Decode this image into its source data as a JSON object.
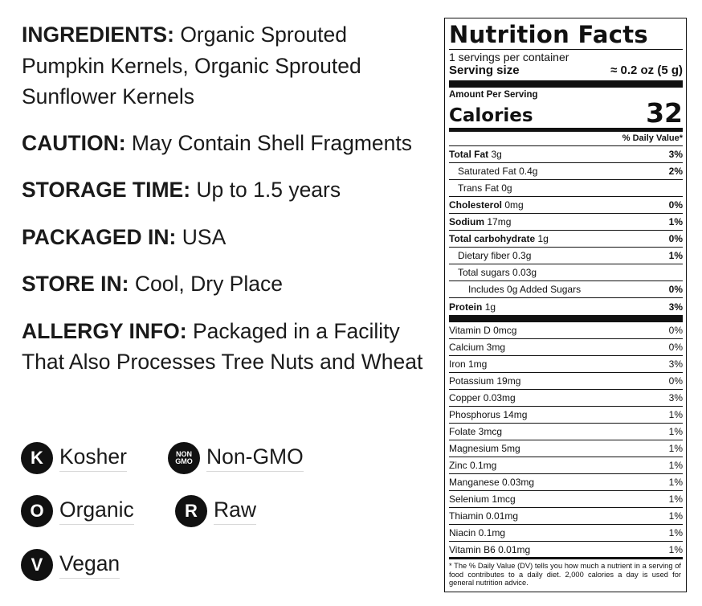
{
  "info": {
    "ingredients_label": "INGREDIENTS:",
    "ingredients_text": "Organic Sprouted Pumpkin Kernels, Organic Sprouted Sunflower Kernels",
    "caution_label": "CAUTION:",
    "caution_text": "May Contain Shell Fragments",
    "storage_time_label": "STORAGE TIME:",
    "storage_time_text": "Up to 1.5 years",
    "packaged_label": "PACKAGED IN:",
    "packaged_text": "USA",
    "store_label": "STORE IN:",
    "store_text": "Cool, Dry Place",
    "allergy_label": "ALLERGY INFO:",
    "allergy_text": "Packaged in a Facility That Also Processes Tree Nuts and Wheat"
  },
  "badges": {
    "kosher": {
      "icon_letter": "K",
      "label": "Kosher"
    },
    "nongmo": {
      "icon_top": "NON",
      "icon_bottom": "GMO",
      "label": "Non-GMO"
    },
    "organic": {
      "icon_letter": "O",
      "label": "Organic"
    },
    "raw": {
      "icon_letter": "R",
      "label": "Raw"
    },
    "vegan": {
      "icon_letter": "V",
      "label": "Vegan"
    }
  },
  "nutrition": {
    "title": "Nutrition Facts",
    "servings_per_container": "1 servings per container",
    "serving_size_label": "Serving size",
    "serving_size_value": "≈ 0.2 oz (5 g)",
    "amount_per_serving": "Amount Per Serving",
    "calories_label": "Calories",
    "calories_value": "32",
    "dv_header": "% Daily Value*",
    "nutrients": [
      {
        "name": "Total Fat",
        "amount": "3g",
        "dv": "3%"
      },
      {
        "name": "Saturated Fat",
        "amount": "0.4g",
        "dv": "2%"
      },
      {
        "name": "Trans Fat",
        "amount": "0g",
        "dv": ""
      },
      {
        "name": "Cholesterol",
        "amount": "0mg",
        "dv": "0%"
      },
      {
        "name": "Sodium",
        "amount": "17mg",
        "dv": "1%"
      },
      {
        "name": "Total carbohydrate",
        "amount": "1g",
        "dv": "0%"
      },
      {
        "name": "Dietary fiber",
        "amount": "0.3g",
        "dv": "1%"
      },
      {
        "name": "Total sugars",
        "amount": "0.03g",
        "dv": ""
      },
      {
        "name": "Includes 0g Added Sugars",
        "amount": "",
        "dv": "0%"
      },
      {
        "name": "Protein",
        "amount": "1g",
        "dv": "3%"
      }
    ],
    "vitamins": [
      {
        "label": "Vitamin D 0mcg",
        "dv": "0%"
      },
      {
        "label": "Calcium 3mg",
        "dv": "0%"
      },
      {
        "label": "Iron 1mg",
        "dv": "3%"
      },
      {
        "label": "Potassium 19mg",
        "dv": "0%"
      },
      {
        "label": "Copper 0.03mg",
        "dv": "3%"
      },
      {
        "label": "Phosphorus 14mg",
        "dv": "1%"
      },
      {
        "label": "Folate 3mcg",
        "dv": "1%"
      },
      {
        "label": "Magnesium 5mg",
        "dv": "1%"
      },
      {
        "label": "Zinc 0.1mg",
        "dv": "1%"
      },
      {
        "label": "Manganese 0.03mg",
        "dv": "1%"
      },
      {
        "label": "Selenium 1mcg",
        "dv": "1%"
      },
      {
        "label": "Thiamin 0.01mg",
        "dv": "1%"
      },
      {
        "label": "Niacin 0.1mg",
        "dv": "1%"
      },
      {
        "label": "Vitamin B6 0.01mg",
        "dv": "1%"
      }
    ],
    "footnote": "* The % Daily Value (DV) tells you how much a nutrient in a serving of food contributes to a daily diet. 2,000 calories a day is used for general nutrition advice."
  }
}
